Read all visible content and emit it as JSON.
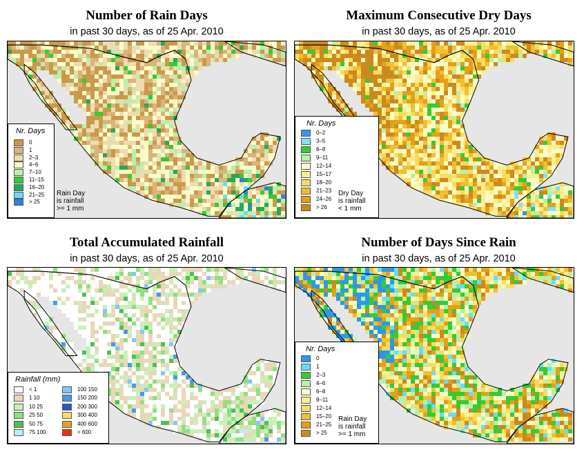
{
  "panels": [
    {
      "id": "rain-days",
      "title": "Number of Rain Days",
      "subtitle": "in past 30 days, as of  25 Apr. 2010",
      "legend_title": "Nr. Days",
      "legend_note": [
        "Rain Day",
        "is rainfall",
        ">= 1 mm"
      ],
      "note_in_legend": false,
      "classes": [
        {
          "label": "0",
          "color": "#c99a4b"
        },
        {
          "label": "1",
          "color": "#d9b57a"
        },
        {
          "label": "2–3",
          "color": "#eddcb0"
        },
        {
          "label": "4–6",
          "color": "#fbfbc8"
        },
        {
          "label": "7–10",
          "color": "#b8f0a8"
        },
        {
          "label": "11–15",
          "color": "#33cc33"
        },
        {
          "label": "16–20",
          "color": "#28a85a"
        },
        {
          "label": "21–25",
          "color": "#66ddff"
        },
        {
          "label": "> 25",
          "color": "#2a85d8"
        }
      ],
      "mix": {
        "0": 3,
        "1": 3,
        "2": 3,
        "3": 4,
        "4": 1.5,
        "5": 0.4,
        "6": 0.15
      }
    },
    {
      "id": "max-dry-days",
      "title": "Maximum Consecutive Dry Days",
      "subtitle": "in past 30 days, as of  25 Apr. 2010",
      "legend_title": "Nr. Days",
      "legend_note": [
        "Dry Day",
        "is rainfall",
        "< 1 mm"
      ],
      "note_in_legend": true,
      "classes": [
        {
          "label": "0–2",
          "color": "#3399ee"
        },
        {
          "label": "3–5",
          "color": "#88ddff"
        },
        {
          "label": "6–8",
          "color": "#33cc33"
        },
        {
          "label": "9–11",
          "color": "#b8f0a8"
        },
        {
          "label": "12–14",
          "color": "#fbfbc8"
        },
        {
          "label": "15–17",
          "color": "#fbee90"
        },
        {
          "label": "18–20",
          "color": "#f8dc60"
        },
        {
          "label": "21–23",
          "color": "#f0c030"
        },
        {
          "label": "24–26",
          "color": "#e5a018"
        },
        {
          "label": "> 26",
          "color": "#cc8a1e"
        }
      ],
      "mix": {
        "2": 0.6,
        "3": 0.5,
        "4": 3,
        "5": 2.5,
        "6": 2,
        "7": 2,
        "8": 2,
        "9": 2
      }
    },
    {
      "id": "total-rainfall",
      "title": "Total Accumulated Rainfall",
      "subtitle": "in past 30 days, as of  25 Apr. 2010",
      "legend_title": "Rainfall (mm)",
      "classes": [
        {
          "label": "< 1",
          "color": "#ffffff"
        },
        {
          "label": "1   10",
          "color": "#e8d8b8"
        },
        {
          "label": "10   25",
          "color": "#c8f0b8"
        },
        {
          "label": "25   50",
          "color": "#90e080"
        },
        {
          "label": "50   75",
          "color": "#50c050"
        },
        {
          "label": "75   100",
          "color": "#b8f0f8"
        },
        {
          "label": "100   150",
          "color": "#80c8f8"
        },
        {
          "label": "150   200",
          "color": "#4898f0"
        },
        {
          "label": "200   300",
          "color": "#2458d0"
        },
        {
          "label": "300   400",
          "color": "#f8e060"
        },
        {
          "label": "400   600",
          "color": "#f0a020"
        },
        {
          "label": "> 600",
          "color": "#f03010"
        }
      ],
      "mix": {
        "0": 5,
        "1": 4,
        "2": 2,
        "3": 1,
        "4": 0.3,
        "6": 0.15,
        "7": 0.1
      }
    },
    {
      "id": "days-since-rain",
      "title": "Number of Days Since Rain",
      "subtitle": "in past 30 days, as of  25 Apr. 2010",
      "legend_title": "Nr. Days",
      "legend_note": [
        "Rain Day",
        "is rainfall",
        ">= 1 mm"
      ],
      "note_in_legend": true,
      "classes": [
        {
          "label": "0",
          "color": "#2a9ae8"
        },
        {
          "label": "1",
          "color": "#66ddff"
        },
        {
          "label": "2–3",
          "color": "#33cc33"
        },
        {
          "label": "4–6",
          "color": "#b8f0a8"
        },
        {
          "label": "6–8",
          "color": "#fbfbc8"
        },
        {
          "label": "9–11",
          "color": "#fbee90"
        },
        {
          "label": "12–14",
          "color": "#f8dc60"
        },
        {
          "label": "15–20",
          "color": "#f0c030"
        },
        {
          "label": "21–25",
          "color": "#e5a018"
        },
        {
          "label": "> 25",
          "color": "#cc8a1e"
        }
      ],
      "mix": {
        "1": 0.6,
        "2": 2.2,
        "3": 1.8,
        "4": 2,
        "5": 1.2,
        "6": 1,
        "7": 1.2,
        "8": 1.5,
        "9": 1.5
      }
    }
  ],
  "colors": {
    "land_background": "#e6e6e6",
    "border": "#000000"
  }
}
